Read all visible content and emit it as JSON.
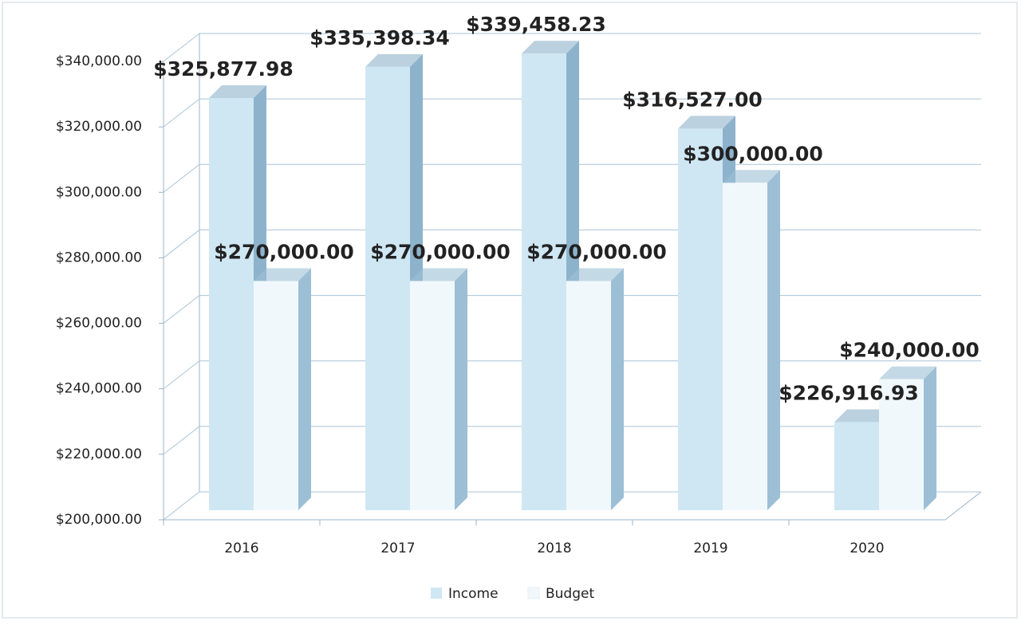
{
  "chart_data": {
    "type": "bar3d",
    "categories": [
      "2016",
      "2017",
      "2018",
      "2019",
      "2020"
    ],
    "series": [
      {
        "name": "Income",
        "color": "#cfe7f3",
        "side_color": "#8db3cc",
        "values": [
          325877.98,
          335398.34,
          339458.23,
          316527.0,
          226916.93
        ],
        "value_labels": [
          "$325,877.98",
          "$335,398.34",
          "$339,458.23",
          "$316,527.00",
          "$226,916.93"
        ]
      },
      {
        "name": "Budget",
        "color": "#f1f8fc",
        "side_color": "#9cbfd6",
        "values": [
          270000,
          270000,
          270000,
          300000,
          240000
        ],
        "value_labels": [
          "$270,000.00",
          "$270,000.00",
          "$270,000.00",
          "$300,000.00",
          "$240,000.00"
        ]
      }
    ],
    "ylim": [
      200000,
      340000
    ],
    "yticks": [
      {
        "value": 200000,
        "label": "$200,000.00"
      },
      {
        "value": 220000,
        "label": "$220,000.00"
      },
      {
        "value": 240000,
        "label": "$240,000.00"
      },
      {
        "value": 260000,
        "label": "$260,000.00"
      },
      {
        "value": 280000,
        "label": "$280,000.00"
      },
      {
        "value": 300000,
        "label": "$300,000.00"
      },
      {
        "value": 320000,
        "label": "$320,000.00"
      },
      {
        "value": 340000,
        "label": "$340,000.00"
      }
    ],
    "grid": true,
    "legend": "bottom"
  }
}
